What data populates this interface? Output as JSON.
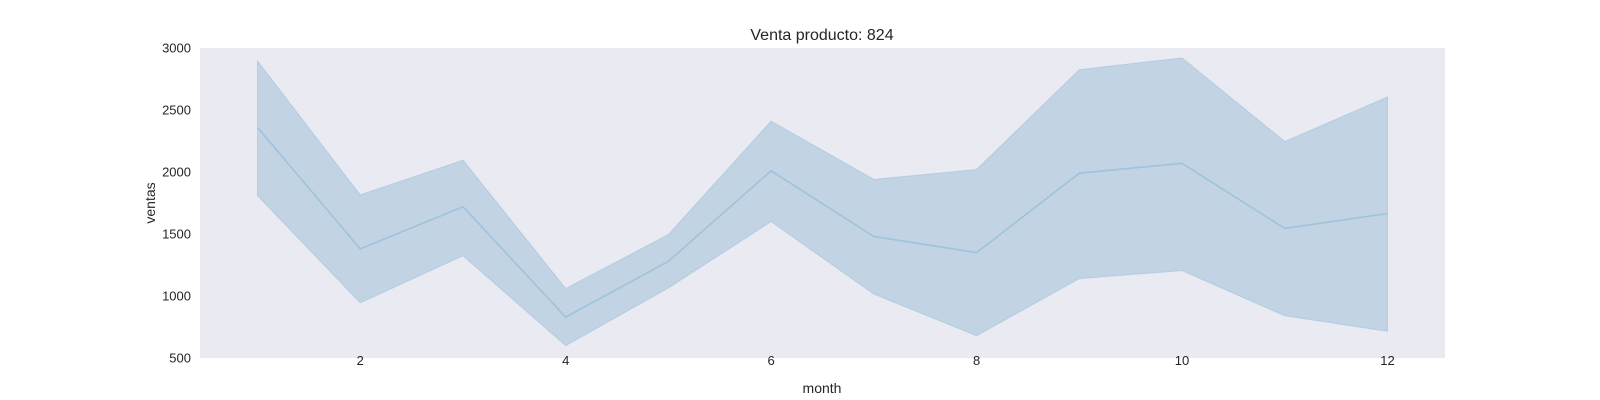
{
  "chart_data": {
    "type": "line",
    "title": "Venta producto: 824",
    "xlabel": "month",
    "ylabel": "ventas",
    "xlim": [
      0.44,
      12.56
    ],
    "ylim": [
      500,
      3000
    ],
    "xticks": [
      2,
      4,
      6,
      8,
      10,
      12
    ],
    "yticks": [
      500,
      1000,
      1500,
      2000,
      2500,
      3000
    ],
    "grid": false,
    "background": "#eaeaf2",
    "series": [
      {
        "color": "#9ec3dd",
        "band_color": "#c2d3e3",
        "x": [
          1,
          2,
          3,
          4,
          5,
          6,
          7,
          8,
          9,
          10,
          11,
          12
        ],
        "y": [
          2360,
          1380,
          1720,
          830,
          1280,
          2010,
          1480,
          1350,
          1990,
          2070,
          1545,
          1665
        ],
        "band_upper": [
          2895,
          1815,
          2095,
          1060,
          1495,
          2410,
          1940,
          2020,
          2825,
          2920,
          2245,
          2605
        ],
        "band_lower": [
          1810,
          945,
          1325,
          600,
          1065,
          1600,
          1015,
          680,
          1140,
          1205,
          840,
          715
        ]
      }
    ]
  }
}
